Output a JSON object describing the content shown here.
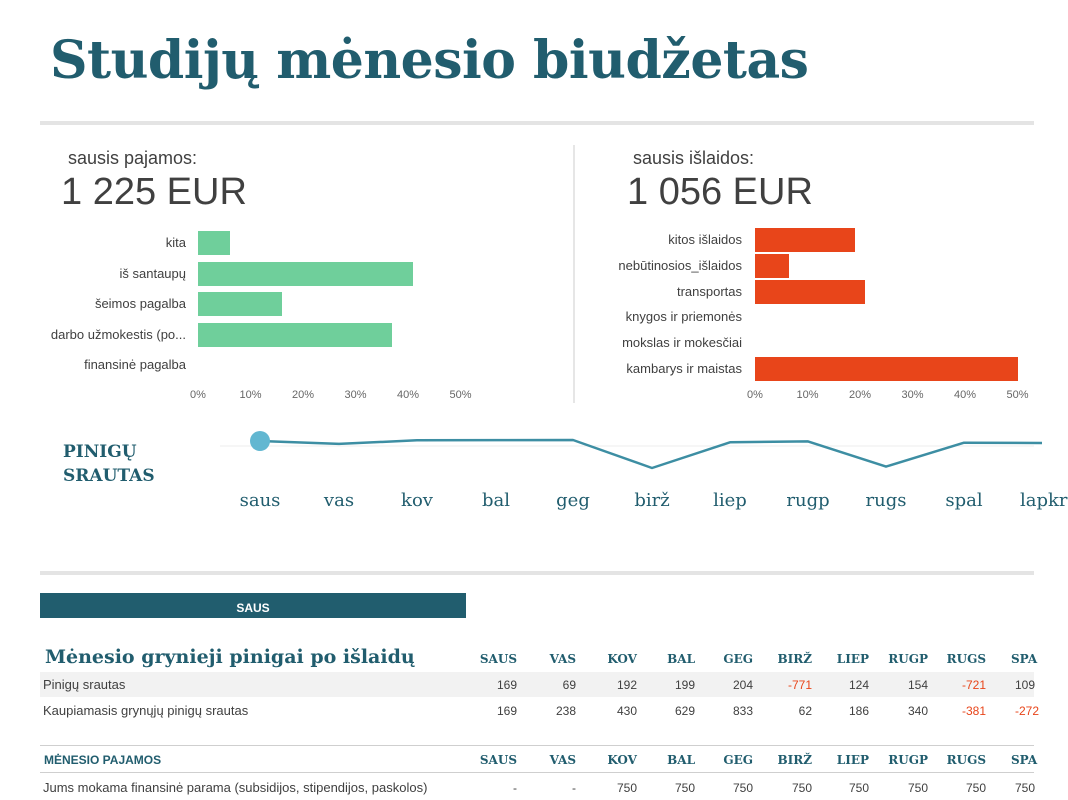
{
  "title": "Studijų mėnesio biudžetas",
  "colors": {
    "accent": "#215d6e",
    "income": "#6fcf9b",
    "expense": "#e8451a",
    "flow": "#3d8ea3",
    "negative": "#e8451a"
  },
  "income": {
    "label": "sausis pajamos:",
    "total": "1 225 EUR",
    "chart_data": {
      "type": "bar",
      "orientation": "horizontal",
      "categories": [
        "kita",
        "iš santaupų",
        "šeimos pagalba",
        "darbo užmokestis (po...",
        "finansinė pagalba"
      ],
      "values": [
        6,
        41,
        16,
        37,
        0
      ],
      "unit": "%",
      "xlim": [
        0,
        50
      ],
      "ticks": [
        "0%",
        "10%",
        "20%",
        "30%",
        "40%",
        "50%"
      ]
    }
  },
  "expenses": {
    "label": "sausis išlaidos:",
    "total": "1 056 EUR",
    "chart_data": {
      "type": "bar",
      "orientation": "horizontal",
      "categories": [
        "kitos išlaidos",
        "nebūtinosios_išlaidos",
        "transportas",
        "knygos ir priemonės",
        "mokslas ir mokesčiai",
        "kambarys ir maistas"
      ],
      "values": [
        19,
        6.5,
        21,
        0,
        0,
        50
      ],
      "unit": "%",
      "xlim": [
        0,
        50
      ],
      "ticks": [
        "0%",
        "10%",
        "20%",
        "30%",
        "40%",
        "50%"
      ]
    }
  },
  "cash_flow": {
    "title_line1": "PINIGŲ",
    "title_line2": "SRAUTAS",
    "months": [
      "saus",
      "vas",
      "kov",
      "bal",
      "geg",
      "birž",
      "liep",
      "rugp",
      "rugs",
      "spal",
      "lapkr"
    ],
    "chart_data": {
      "type": "line",
      "x": [
        "saus",
        "vas",
        "kov",
        "bal",
        "geg",
        "birž",
        "liep",
        "rugp",
        "rugs",
        "spal",
        "lapkr"
      ],
      "values": [
        169,
        69,
        192,
        199,
        204,
        -771,
        124,
        154,
        -721,
        109,
        100
      ],
      "selected": "saus"
    }
  },
  "banner": "SAUS",
  "net_table": {
    "title": "Mėnesio grynieji pinigai po išlaidų",
    "columns": [
      "SAUS",
      "VAS",
      "KOV",
      "BAL",
      "GEG",
      "BIRŽ",
      "LIEP",
      "RUGP",
      "RUGS",
      "SPA"
    ],
    "rows": [
      {
        "label": "Pinigų srautas",
        "values": [
          "169",
          "69",
          "192",
          "199",
          "204",
          "-771",
          "124",
          "154",
          "-721",
          "109"
        ]
      },
      {
        "label": "Kaupiamasis grynųjų pinigų srautas",
        "values": [
          "169",
          "238",
          "430",
          "629",
          "833",
          "62",
          "186",
          "340",
          "-381",
          "-272"
        ]
      }
    ]
  },
  "income_table": {
    "title": "MĖNESIO PAJAMOS",
    "columns": [
      "SAUS",
      "VAS",
      "KOV",
      "BAL",
      "GEG",
      "BIRŽ",
      "LIEP",
      "RUGP",
      "RUGS",
      "SPA"
    ],
    "rows": [
      {
        "label": "Jums mokama finansinė parama (subsidijos, stipendijos, paskolos)",
        "values": [
          "-",
          "-",
          "750",
          "750",
          "750",
          "750",
          "750",
          "750",
          "750",
          "750"
        ]
      }
    ]
  }
}
